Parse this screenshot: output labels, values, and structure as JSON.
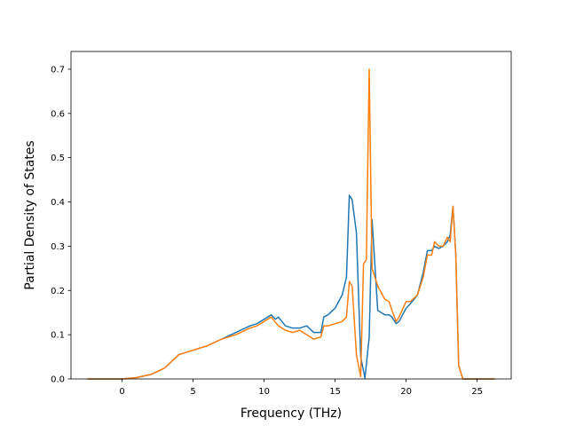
{
  "chart_data": {
    "type": "line",
    "title": "",
    "xlabel": "Frequency (THz)",
    "ylabel": "Partial Density of States",
    "xlim": [
      -3.6,
      27.4
    ],
    "ylim": [
      0,
      0.74
    ],
    "x_ticks": [
      0,
      5,
      10,
      15,
      20,
      25
    ],
    "y_ticks": [
      0.0,
      0.1,
      0.2,
      0.3,
      0.4,
      0.5,
      0.6,
      0.7
    ],
    "x_tick_labels": [
      "0",
      "5",
      "10",
      "15",
      "20",
      "25"
    ],
    "y_tick_labels": [
      "0.0",
      "0.1",
      "0.2",
      "0.3",
      "0.4",
      "0.5",
      "0.6",
      "0.7"
    ],
    "grid": false,
    "legend": "none",
    "colors": [
      "#1f77b4",
      "#ff7f0e"
    ],
    "series": [
      {
        "x": [
          -2.4,
          0.0,
          1.0,
          2.0,
          2.5,
          3.0,
          3.5,
          4.0,
          4.5,
          5.0,
          6.0,
          7.0,
          8.0,
          9.0,
          9.5,
          10.0,
          10.5,
          10.8,
          11.0,
          11.5,
          12.0,
          12.5,
          13.0,
          13.5,
          14.0,
          14.2,
          14.5,
          15.0,
          15.5,
          15.8,
          16.0,
          16.2,
          16.5,
          16.8,
          17.1,
          17.4,
          17.6,
          18.0,
          18.5,
          18.8,
          19.0,
          19.3,
          19.5,
          20.0,
          20.3,
          20.8,
          21.2,
          21.5,
          21.8,
          22.0,
          22.3,
          22.6,
          22.9,
          23.1,
          23.3,
          23.5,
          23.7,
          24.0,
          26.2
        ],
        "y": [
          0.0,
          0.0,
          0.003,
          0.01,
          0.017,
          0.025,
          0.04,
          0.055,
          0.06,
          0.065,
          0.075,
          0.09,
          0.105,
          0.12,
          0.125,
          0.135,
          0.145,
          0.135,
          0.14,
          0.12,
          0.115,
          0.115,
          0.12,
          0.105,
          0.105,
          0.14,
          0.145,
          0.16,
          0.19,
          0.23,
          0.415,
          0.405,
          0.33,
          0.05,
          0.002,
          0.095,
          0.36,
          0.155,
          0.145,
          0.145,
          0.14,
          0.125,
          0.13,
          0.16,
          0.17,
          0.19,
          0.24,
          0.29,
          0.29,
          0.3,
          0.295,
          0.3,
          0.31,
          0.325,
          0.39,
          0.28,
          0.03,
          0.0,
          0.0
        ]
      },
      {
        "x": [
          -2.4,
          0.0,
          1.0,
          2.0,
          2.5,
          3.0,
          3.5,
          4.0,
          4.5,
          5.0,
          6.0,
          7.0,
          8.0,
          9.0,
          9.5,
          10.0,
          10.5,
          11.0,
          11.5,
          12.0,
          12.5,
          13.0,
          13.5,
          14.0,
          14.2,
          14.5,
          15.0,
          15.5,
          15.8,
          16.0,
          16.2,
          16.5,
          16.8,
          17.0,
          17.2,
          17.4,
          17.6,
          18.0,
          18.5,
          18.8,
          19.0,
          19.3,
          19.5,
          20.0,
          20.3,
          20.8,
          21.2,
          21.5,
          21.8,
          22.0,
          22.3,
          22.6,
          22.9,
          23.1,
          23.3,
          23.5,
          23.7,
          24.0,
          26.2
        ],
        "y": [
          0.0,
          0.0,
          0.003,
          0.01,
          0.017,
          0.025,
          0.04,
          0.055,
          0.06,
          0.065,
          0.075,
          0.09,
          0.1,
          0.115,
          0.12,
          0.13,
          0.14,
          0.12,
          0.11,
          0.105,
          0.11,
          0.1,
          0.09,
          0.095,
          0.12,
          0.12,
          0.125,
          0.13,
          0.14,
          0.22,
          0.21,
          0.055,
          0.005,
          0.26,
          0.27,
          0.7,
          0.25,
          0.21,
          0.18,
          0.175,
          0.155,
          0.13,
          0.14,
          0.175,
          0.175,
          0.19,
          0.23,
          0.28,
          0.28,
          0.31,
          0.3,
          0.3,
          0.32,
          0.31,
          0.39,
          0.28,
          0.03,
          0.0,
          0.0
        ]
      }
    ]
  }
}
